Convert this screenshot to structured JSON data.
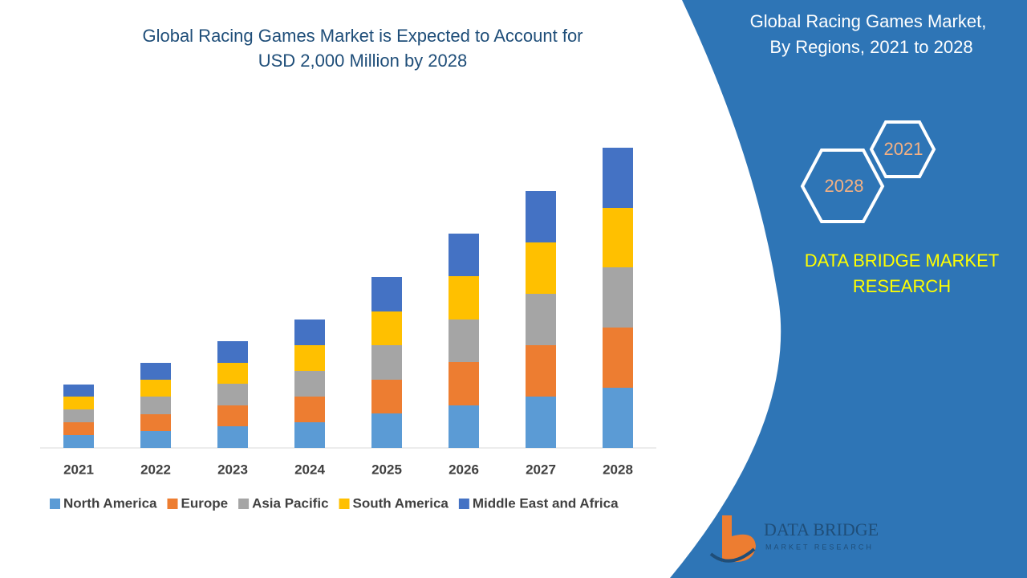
{
  "chart_data": {
    "type": "stacked-bar",
    "title": "Global Racing Games Market is Expected to Account for USD 2,000 Million by 2028",
    "categories": [
      "2021",
      "2022",
      "2023",
      "2024",
      "2025",
      "2026",
      "2027",
      "2028"
    ],
    "series": [
      {
        "name": "North America",
        "color": "#5b9bd5",
        "values": [
          16,
          21,
          27,
          32,
          43,
          53,
          64,
          75
        ]
      },
      {
        "name": "Europe",
        "color": "#ed7d31",
        "values": [
          16,
          21,
          26,
          32,
          42,
          54,
          64,
          75
        ]
      },
      {
        "name": "Asia Pacific",
        "color": "#a5a5a5",
        "values": [
          16,
          22,
          27,
          32,
          43,
          53,
          64,
          75
        ]
      },
      {
        "name": "South America",
        "color": "#ffc000",
        "values": [
          16,
          21,
          26,
          32,
          42,
          54,
          64,
          74
        ]
      },
      {
        "name": "Middle East and Africa",
        "color": "#4472c4",
        "values": [
          15,
          21,
          27,
          32,
          43,
          53,
          64,
          75
        ]
      }
    ],
    "legend": "bottom"
  },
  "panel": {
    "title_line1": "Global Racing Games Market,",
    "title_line2": "By Regions, 2021 to 2028",
    "hex_start": "2021",
    "hex_end": "2028",
    "brand_line1": "DATA BRIDGE MARKET",
    "brand_line2": "RESEARCH",
    "logo_line1": "DATA BRIDGE",
    "logo_line2": "MARKET RESEARCH"
  }
}
